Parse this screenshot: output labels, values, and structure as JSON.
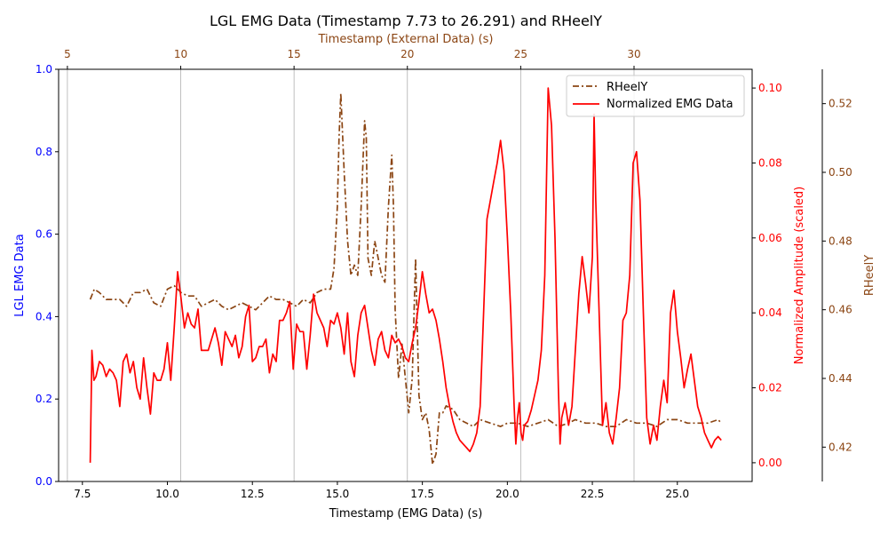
{
  "chart_data": {
    "type": "line",
    "title": "LGL EMG Data (Timestamp 7.73 to 26.291) and RHeelY",
    "xlabel": "Timestamp (EMG Data) (s)",
    "x_top_label": "Timestamp (External Data) (s)",
    "ylabel_left": "LGL EMG Data",
    "ylabel_right": "Normalized Amplitude (scaled)",
    "ylabel_far_right": "RHeelY",
    "xlim": [
      6.8,
      27.2
    ],
    "ylim_left": [
      0.0,
      1.0
    ],
    "ylim_right": [
      -0.005,
      0.105
    ],
    "ylim_far_right": [
      0.41,
      0.53
    ],
    "x_ticks": [
      "7.5",
      "10.0",
      "12.5",
      "15.0",
      "17.5",
      "20.0",
      "22.5",
      "25.0"
    ],
    "x_tick_values": [
      7.5,
      10.0,
      12.5,
      15.0,
      17.5,
      20.0,
      22.5,
      25.0
    ],
    "x_top_ticks": [
      "5",
      "10",
      "15",
      "20",
      "25",
      "30"
    ],
    "x_top_tick_values": [
      5,
      10,
      15,
      20,
      25,
      30
    ],
    "x_top_map": {
      "a": 3.725,
      "b": 0.6667
    },
    "y_left_ticks": [
      "0.0",
      "0.2",
      "0.4",
      "0.6",
      "0.8",
      "1.0"
    ],
    "y_left_tick_values": [
      0.0,
      0.2,
      0.4,
      0.6,
      0.8,
      1.0
    ],
    "y_right_ticks": [
      "0.00",
      "0.02",
      "0.04",
      "0.06",
      "0.08",
      "0.10"
    ],
    "y_right_tick_values": [
      0.0,
      0.02,
      0.04,
      0.06,
      0.08,
      0.1
    ],
    "y_far_right_ticks": [
      "0.42",
      "0.44",
      "0.46",
      "0.48",
      "0.50",
      "0.52"
    ],
    "y_far_right_tick_values": [
      0.42,
      0.44,
      0.46,
      0.48,
      0.5,
      0.52
    ],
    "grid": "vertical lines at top-axis ticks",
    "legend": {
      "position": "top-right",
      "entries": [
        "RHeelY",
        "Normalized EMG Data"
      ]
    },
    "colors": {
      "left_axis": "#0000ff",
      "right_axis": "#ff0000",
      "far_right_axis": "#8b4513",
      "emg_line": "#ff0000",
      "rheel_line": "#8b4513"
    },
    "series": [
      {
        "name": "RHeelY",
        "axis": "far_right",
        "style": "dash-dot",
        "x": [
          7.73,
          7.85,
          8.0,
          8.2,
          8.4,
          8.6,
          8.8,
          9.0,
          9.2,
          9.4,
          9.6,
          9.8,
          10.0,
          10.2,
          10.4,
          10.6,
          10.8,
          11.0,
          11.2,
          11.4,
          11.6,
          11.8,
          12.0,
          12.2,
          12.4,
          12.6,
          12.8,
          13.0,
          13.2,
          13.4,
          13.6,
          13.8,
          14.0,
          14.2,
          14.4,
          14.6,
          14.8,
          14.9,
          15.0,
          15.05,
          15.1,
          15.2,
          15.3,
          15.4,
          15.5,
          15.6,
          15.7,
          15.8,
          15.85,
          15.9,
          16.0,
          16.1,
          16.2,
          16.3,
          16.4,
          16.5,
          16.6,
          16.65,
          16.7,
          16.8,
          16.9,
          17.0,
          17.1,
          17.2,
          17.3,
          17.4,
          17.5,
          17.6,
          17.7,
          17.8,
          17.9,
          18.0,
          18.1,
          18.2,
          18.4,
          18.6,
          18.8,
          19.0,
          19.2,
          19.5,
          19.8,
          20.0,
          20.3,
          20.6,
          20.9,
          21.2,
          21.5,
          21.8,
          22.0,
          22.3,
          22.6,
          22.9,
          23.2,
          23.5,
          23.8,
          24.1,
          24.4,
          24.7,
          25.0,
          25.3,
          25.6,
          25.9,
          26.2,
          26.29
        ],
        "values": [
          0.463,
          0.466,
          0.465,
          0.463,
          0.463,
          0.463,
          0.461,
          0.465,
          0.465,
          0.466,
          0.462,
          0.461,
          0.466,
          0.467,
          0.465,
          0.464,
          0.464,
          0.461,
          0.462,
          0.463,
          0.461,
          0.46,
          0.461,
          0.462,
          0.461,
          0.46,
          0.462,
          0.464,
          0.463,
          0.463,
          0.462,
          0.461,
          0.463,
          0.462,
          0.465,
          0.466,
          0.466,
          0.472,
          0.49,
          0.51,
          0.523,
          0.5,
          0.48,
          0.47,
          0.473,
          0.47,
          0.49,
          0.515,
          0.51,
          0.475,
          0.47,
          0.48,
          0.475,
          0.47,
          0.468,
          0.49,
          0.505,
          0.49,
          0.46,
          0.44,
          0.45,
          0.44,
          0.43,
          0.44,
          0.475,
          0.435,
          0.428,
          0.43,
          0.425,
          0.415,
          0.418,
          0.43,
          0.43,
          0.432,
          0.431,
          0.428,
          0.427,
          0.426,
          0.428,
          0.427,
          0.426,
          0.427,
          0.427,
          0.426,
          0.427,
          0.428,
          0.426,
          0.427,
          0.428,
          0.427,
          0.427,
          0.426,
          0.426,
          0.428,
          0.427,
          0.427,
          0.426,
          0.428,
          0.428,
          0.427,
          0.427,
          0.427,
          0.428,
          0.427
        ]
      },
      {
        "name": "Normalized EMG Data",
        "axis": "right",
        "style": "solid",
        "x": [
          7.73,
          7.78,
          7.84,
          7.9,
          8.0,
          8.1,
          8.2,
          8.3,
          8.4,
          8.5,
          8.6,
          8.7,
          8.8,
          8.9,
          9.0,
          9.1,
          9.2,
          9.3,
          9.4,
          9.5,
          9.6,
          9.7,
          9.8,
          9.9,
          10.0,
          10.1,
          10.2,
          10.3,
          10.4,
          10.5,
          10.6,
          10.7,
          10.8,
          10.9,
          11.0,
          11.1,
          11.2,
          11.3,
          11.4,
          11.5,
          11.6,
          11.7,
          11.8,
          11.9,
          12.0,
          12.1,
          12.2,
          12.3,
          12.4,
          12.5,
          12.6,
          12.7,
          12.8,
          12.9,
          13.0,
          13.1,
          13.2,
          13.3,
          13.4,
          13.5,
          13.6,
          13.7,
          13.8,
          13.9,
          14.0,
          14.1,
          14.2,
          14.3,
          14.4,
          14.5,
          14.6,
          14.7,
          14.8,
          14.9,
          15.0,
          15.1,
          15.2,
          15.3,
          15.4,
          15.5,
          15.6,
          15.7,
          15.8,
          15.9,
          16.0,
          16.1,
          16.2,
          16.3,
          16.4,
          16.5,
          16.6,
          16.7,
          16.8,
          16.9,
          17.0,
          17.1,
          17.2,
          17.3,
          17.4,
          17.5,
          17.6,
          17.7,
          17.8,
          17.9,
          18.0,
          18.1,
          18.2,
          18.3,
          18.4,
          18.5,
          18.6,
          18.7,
          18.8,
          18.9,
          19.0,
          19.1,
          19.2,
          19.3,
          19.4,
          19.5,
          19.6,
          19.7,
          19.8,
          19.9,
          20.0,
          20.1,
          20.2,
          20.25,
          20.3,
          20.35,
          20.4,
          20.45,
          20.5,
          20.6,
          20.7,
          20.8,
          20.9,
          21.0,
          21.1,
          21.2,
          21.3,
          21.4,
          21.5,
          21.55,
          21.6,
          21.7,
          21.8,
          21.9,
          22.0,
          22.1,
          22.2,
          22.3,
          22.4,
          22.5,
          22.55,
          22.6,
          22.7,
          22.8,
          22.9,
          23.0,
          23.1,
          23.2,
          23.3,
          23.4,
          23.5,
          23.6,
          23.7,
          23.8,
          23.9,
          24.0,
          24.1,
          24.2,
          24.3,
          24.4,
          24.5,
          24.6,
          24.7,
          24.8,
          24.9,
          25.0,
          25.1,
          25.2,
          25.3,
          25.4,
          25.5,
          25.6,
          25.7,
          25.8,
          25.9,
          26.0,
          26.1,
          26.2,
          26.29
        ],
        "values": [
          0.0,
          0.03,
          0.022,
          0.023,
          0.027,
          0.026,
          0.023,
          0.025,
          0.024,
          0.022,
          0.015,
          0.027,
          0.029,
          0.024,
          0.027,
          0.02,
          0.017,
          0.028,
          0.02,
          0.013,
          0.024,
          0.022,
          0.022,
          0.025,
          0.032,
          0.022,
          0.036,
          0.051,
          0.044,
          0.036,
          0.04,
          0.037,
          0.036,
          0.041,
          0.03,
          0.03,
          0.03,
          0.033,
          0.036,
          0.032,
          0.026,
          0.035,
          0.033,
          0.031,
          0.034,
          0.028,
          0.031,
          0.039,
          0.042,
          0.027,
          0.028,
          0.031,
          0.031,
          0.033,
          0.024,
          0.029,
          0.027,
          0.038,
          0.038,
          0.04,
          0.043,
          0.025,
          0.037,
          0.035,
          0.035,
          0.025,
          0.034,
          0.045,
          0.04,
          0.038,
          0.036,
          0.031,
          0.038,
          0.037,
          0.04,
          0.036,
          0.029,
          0.04,
          0.027,
          0.023,
          0.034,
          0.04,
          0.042,
          0.036,
          0.03,
          0.026,
          0.033,
          0.035,
          0.03,
          0.028,
          0.034,
          0.032,
          0.033,
          0.031,
          0.028,
          0.027,
          0.032,
          0.036,
          0.043,
          0.051,
          0.045,
          0.04,
          0.041,
          0.038,
          0.033,
          0.027,
          0.02,
          0.015,
          0.011,
          0.008,
          0.006,
          0.005,
          0.004,
          0.003,
          0.005,
          0.008,
          0.015,
          0.04,
          0.065,
          0.07,
          0.075,
          0.08,
          0.086,
          0.078,
          0.06,
          0.04,
          0.015,
          0.005,
          0.012,
          0.016,
          0.008,
          0.006,
          0.01,
          0.011,
          0.014,
          0.018,
          0.022,
          0.03,
          0.05,
          0.1,
          0.09,
          0.06,
          0.02,
          0.005,
          0.012,
          0.016,
          0.01,
          0.015,
          0.03,
          0.045,
          0.055,
          0.048,
          0.04,
          0.055,
          0.093,
          0.07,
          0.04,
          0.01,
          0.016,
          0.008,
          0.005,
          0.012,
          0.02,
          0.038,
          0.04,
          0.05,
          0.08,
          0.083,
          0.07,
          0.04,
          0.012,
          0.005,
          0.01,
          0.006,
          0.015,
          0.022,
          0.016,
          0.04,
          0.046,
          0.035,
          0.028,
          0.02,
          0.025,
          0.029,
          0.022,
          0.015,
          0.012,
          0.008,
          0.006,
          0.004,
          0.006,
          0.007,
          0.006
        ]
      }
    ]
  }
}
